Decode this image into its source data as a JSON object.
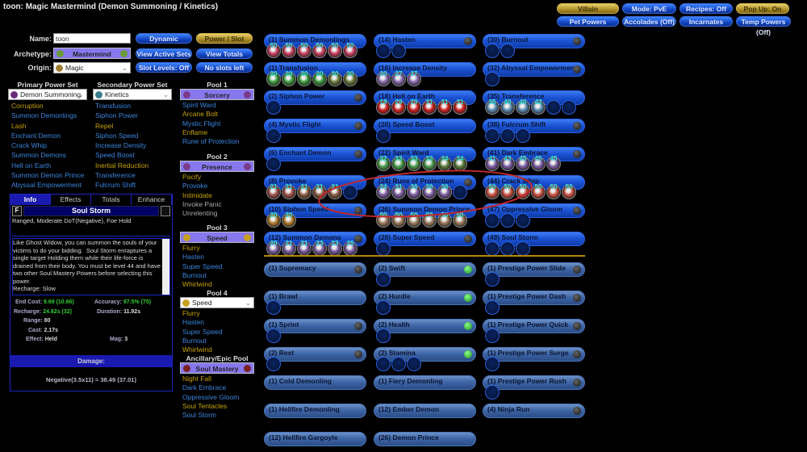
{
  "title": "toon: Magic Mastermind (Demon Summoning / Kinetics)",
  "topbuttons": [
    {
      "label": "Villain",
      "gold": true
    },
    {
      "label": "Mode: PvE"
    },
    {
      "label": "Recipes: Off"
    },
    {
      "label": "Pop Up: On",
      "gold": true
    },
    {
      "label": "Pet Powers"
    },
    {
      "label": "Accolades (Off)"
    },
    {
      "label": "Incarnates"
    },
    {
      "label": "Temp Powers (Off)"
    }
  ],
  "form": {
    "name_label": "Name:",
    "name_value": "toon",
    "archetype_label": "Archetype:",
    "archetype": "Mastermind",
    "origin_label": "Origin:",
    "origin": "Magic"
  },
  "buttons": {
    "dynamic": "Dynamic",
    "power_slot": "Power / Slot",
    "view_active_sets": "View Active Sets",
    "view_totals": "View Totals",
    "slot_levels": "Slot Levels: Off",
    "no_slots": "No slots left"
  },
  "primary": {
    "header": "Primary Power Set",
    "selected": "Demon Summoning",
    "items": [
      [
        "Corruption",
        "y"
      ],
      [
        "Summon Demonlings",
        "b"
      ],
      [
        "Lash",
        "y"
      ],
      [
        "Enchant Demon",
        "b"
      ],
      [
        "Crack Whip",
        "b"
      ],
      [
        "Summon Demons",
        "b"
      ],
      [
        "Hell on Earth",
        "b"
      ],
      [
        "Summon Demon Prince",
        "b"
      ],
      [
        "Abyssal Empowerment",
        "b"
      ]
    ]
  },
  "secondary": {
    "header": "Secondary Power Set",
    "selected": "Kinetics",
    "items": [
      [
        "Transfusion",
        "b"
      ],
      [
        "Siphon Power",
        "b"
      ],
      [
        "Repel",
        "y"
      ],
      [
        "Siphon Speed",
        "b"
      ],
      [
        "Increase Density",
        "b"
      ],
      [
        "Speed Boost",
        "b"
      ],
      [
        "Inertial Reduction",
        "y"
      ],
      [
        "Transference",
        "b"
      ],
      [
        "Fulcrum Shift",
        "b"
      ]
    ]
  },
  "pools": [
    {
      "header": "Pool 1",
      "name": "Sorcery",
      "items": [
        [
          "Spirit Ward",
          "b"
        ],
        [
          "Arcane Bolt",
          "y"
        ],
        [
          "Mystic Flight",
          "b"
        ],
        [
          "Enflame",
          "y"
        ],
        [
          "Rune of Protection",
          "b"
        ]
      ]
    },
    {
      "header": "Pool 2",
      "name": "Presence",
      "items": [
        [
          "Pacify",
          "y"
        ],
        [
          "Provoke",
          "b"
        ],
        [
          "Intimidate",
          "y"
        ],
        [
          "Invoke Panic",
          "g"
        ],
        [
          "Unrelenting",
          "g"
        ]
      ]
    },
    {
      "header": "Pool 3",
      "name": "Speed",
      "items": [
        [
          "Flurry",
          "y"
        ],
        [
          "Hasten",
          "b"
        ],
        [
          "Super Speed",
          "b"
        ],
        [
          "Burnout",
          "b"
        ],
        [
          "Whirlwind",
          "y"
        ]
      ]
    },
    {
      "header": "Pool 4",
      "name": "Speed",
      "items": [
        [
          "Flurry",
          "y"
        ],
        [
          "Hasten",
          "b"
        ],
        [
          "Super Speed",
          "b"
        ],
        [
          "Burnout",
          "b"
        ],
        [
          "Whirlwind",
          "y"
        ]
      ]
    },
    {
      "header": "Ancillary/Epic Pool",
      "name": "Soul Mastery",
      "items": [
        [
          "Night Fall",
          "y"
        ],
        [
          "Dark Embrace",
          "b"
        ],
        [
          "Oppressive Gloom",
          "b"
        ],
        [
          "Soul Tentacles",
          "y"
        ],
        [
          "Soul Storm",
          "b"
        ]
      ]
    }
  ],
  "info": {
    "tabs": [
      "Info",
      "Effects",
      "Totals",
      "Enhance"
    ],
    "power": "Soul Storm",
    "short": "Ranged, Moderate DoT(Negative), Foe Hold",
    "desc": "Like Ghost Widow, you can summon the souls of your victims to do your bidding.  Soul Storm enraptures a single target Holding them while their life-force is drained from their body. You must be level 44 and have two other Soul Mastery Powers before selecting this power.\nRecharge: Slow",
    "stats": {
      "end_l": "End Cost:",
      "end_v": "9.69 (10.66)",
      "acc_l": "Accuracy:",
      "acc_v": "97.5% (75)",
      "rech_l": "Recharge:",
      "rech_v": "24.62s (32)",
      "dur_l": "Duration:",
      "dur_v": "11.92s",
      "range_l": "Range:",
      "range_v": "80",
      "cast_l": "Cast:",
      "cast_v": "2.17s",
      "eff_l": "Effect:",
      "eff_v": "Held",
      "mag_l": "Mag:",
      "mag_v": "3"
    },
    "damage_header": "Damage:",
    "damage": "Negative(3.5x11) = 38.49 (37.01)"
  },
  "powers": [
    [
      {
        "label": "(1) Summon Demonlings",
        "slots": [
          [
            50,
            "#c84060"
          ],
          [
            50,
            "#c84060"
          ],
          [
            50,
            "#c84060"
          ],
          [
            50,
            "#c84060"
          ],
          [
            50,
            "#c84060"
          ],
          [
            50,
            "#c84060"
          ]
        ]
      },
      {
        "label": "(1) Transfusion",
        "slots": [
          [
            20,
            "#3a9a3a"
          ],
          [
            20,
            "#3a9a3a"
          ],
          [
            20,
            "#3a9a3a"
          ],
          [
            20,
            "#3a9a3a"
          ],
          [
            30,
            "#6a7a3a"
          ],
          [
            30,
            "#6a7a3a"
          ]
        ]
      },
      {
        "label": "(2) Siphon Power",
        "empty": 1,
        "dot": "gray"
      },
      {
        "label": "(4) Mystic Flight",
        "empty": 1,
        "dot": "gray"
      },
      {
        "label": "(6) Enchant Demon",
        "empty": 1,
        "dot": "gray"
      },
      {
        "label": "(8) Provoke",
        "slots": [
          [
            21,
            "#a0504a"
          ],
          [
            21,
            "#a0504a"
          ],
          [
            21,
            "#8a5a40"
          ],
          [
            21,
            "#8a5a40"
          ],
          [
            21,
            "#8a5a40"
          ]
        ],
        "empty": 1
      },
      {
        "label": "(10) Siphon Speed",
        "slots": [
          [
            20,
            "#b07a2a"
          ],
          [
            20,
            "#b07a2a"
          ]
        ],
        "dot": "gray"
      },
      {
        "label": "(12) Summon Demons",
        "slots": [
          [
            20,
            "#7a5aa0"
          ],
          [
            21,
            "#7a5aa0"
          ],
          [
            21,
            "#7a5aa0"
          ],
          [
            23,
            "#7a5aa0"
          ],
          [
            23,
            "#7a5aa0"
          ],
          [
            25,
            "#7a5aa0"
          ]
        ],
        "dot": "gray"
      }
    ],
    [
      {
        "label": "(14) Hasten",
        "empty": 2,
        "dot": "gray"
      },
      {
        "label": "(16) Increase Density",
        "slots": [
          [
            20,
            "#8a6ab0"
          ],
          [
            27,
            "#8a6ab0"
          ],
          [
            27,
            "#8a6ab0"
          ]
        ]
      },
      {
        "label": "(18) Hell on Earth",
        "slots": [
          [
            18,
            "#d02020"
          ],
          [
            29,
            "#d02020"
          ],
          [
            29,
            "#d02020"
          ],
          [
            31,
            "#d02020"
          ],
          [
            31,
            "#d02020"
          ],
          [
            31,
            "#d02020"
          ]
        ]
      },
      {
        "label": "(20) Speed Boost",
        "empty": 1
      },
      {
        "label": "(22) Spirit Ward",
        "slots": [
          [
            22,
            "#4a9a4a"
          ],
          [
            33,
            "#4a9a4a"
          ],
          [
            33,
            "#4a9a4a"
          ],
          [
            33,
            "#4a9a4a"
          ],
          [
            34,
            "#5a7a3a"
          ],
          [
            34,
            "#5a7a3a"
          ]
        ]
      },
      {
        "label": "(24) Rune of Protection",
        "slots": [
          [
            24,
            "#7a5aa0"
          ],
          [
            31,
            "#7a5aa0"
          ],
          [
            36,
            "#7a5aa0"
          ],
          [
            36,
            "#7a5aa0"
          ],
          [
            36,
            "#7a5aa0"
          ]
        ],
        "empty": 1,
        "dot": "gray"
      },
      {
        "label": "(26) Summon Demon Prince",
        "slots": [
          [
            50,
            "#9a7a5a"
          ],
          [
            50,
            "#9a7a5a"
          ],
          [
            50,
            "#9a7a5a"
          ],
          [
            50,
            "#9a7a5a"
          ],
          [
            50,
            "#9a7a5a"
          ],
          [
            50,
            "#9a7a5a"
          ]
        ]
      },
      {
        "label": "(28) Super Speed",
        "empty": 1,
        "dot": "gray"
      }
    ],
    [
      {
        "label": "(30) Burnout",
        "empty": 2,
        "dot": "gray"
      },
      {
        "label": "(32) Abyssal Empowerment",
        "empty": 1,
        "dot": "gray"
      },
      {
        "label": "(35) Transference",
        "slots": [
          [
            35,
            "#5a8ab0"
          ],
          [
            40,
            "#5a8ab0"
          ],
          [
            40,
            "#5a8ab0"
          ],
          [
            42,
            "#5a8ab0"
          ]
        ],
        "empty": 2
      },
      {
        "label": "(38) Fulcrum Shift",
        "empty": 3,
        "dot": "gray"
      },
      {
        "label": "(41) Dark Embrace",
        "slots": [
          [
            41,
            "#7a5aa0"
          ],
          [
            43,
            "#7a5aa0"
          ],
          [
            45,
            "#7a5aa0"
          ],
          [
            45,
            "#7a5aa0"
          ],
          [
            45,
            "#7a5aa0"
          ]
        ],
        "dot": "gray"
      },
      {
        "label": "(44) Crack Whip",
        "slots": [
          [
            50,
            "#c85040"
          ],
          [
            50,
            "#c85040"
          ],
          [
            50,
            "#c85040"
          ],
          [
            50,
            "#c85040"
          ],
          [
            50,
            "#c85040"
          ],
          [
            50,
            "#c85040"
          ]
        ]
      },
      {
        "label": "(47) Oppressive Gloom",
        "empty": 3,
        "dot": "gray"
      },
      {
        "label": "(49) Soul Storm",
        "empty": 3
      }
    ]
  ],
  "inherent": [
    [
      {
        "label": "(1) Supremacy",
        "dot": "gray"
      },
      {
        "label": "(1) Brawl",
        "empty": 1
      },
      {
        "label": "(1) Sprint",
        "empty": 1,
        "dot": "gray"
      },
      {
        "label": "(2) Rest",
        "empty": 1,
        "dot": "gray"
      },
      {
        "label": "(1) Cold Demonling"
      },
      {
        "label": "(1) Hellfire Demonling"
      },
      {
        "label": "(12) Hellfire Gargoyle"
      }
    ],
    [
      {
        "label": "(2) Swift",
        "empty": 1,
        "dot": "green"
      },
      {
        "label": "(2) Hurdle",
        "empty": 1,
        "dot": "green"
      },
      {
        "label": "(2) Health",
        "empty": 1,
        "dot": "green"
      },
      {
        "label": "(2) Stamina",
        "empty": 3,
        "dot": "green"
      },
      {
        "label": "(1) Fiery Demonling"
      },
      {
        "label": "(12) Ember Demon"
      },
      {
        "label": "(26) Demon Prince"
      }
    ],
    [
      {
        "label": "(1) Prestige Power Slide",
        "empty": 1,
        "dot": "gray"
      },
      {
        "label": "(1) Prestige Power Dash",
        "empty": 1,
        "dot": "gray"
      },
      {
        "label": "(1) Prestige Power Quick",
        "empty": 1,
        "dot": "gray"
      },
      {
        "label": "(1) Prestige Power Surge",
        "empty": 1,
        "dot": "gray"
      },
      {
        "label": "(1) Prestige Power Rush",
        "empty": 1,
        "dot": "gray"
      },
      {
        "label": "(4) Ninja Run",
        "dot": "gray"
      }
    ]
  ],
  "annotation_color": "#c0282e"
}
